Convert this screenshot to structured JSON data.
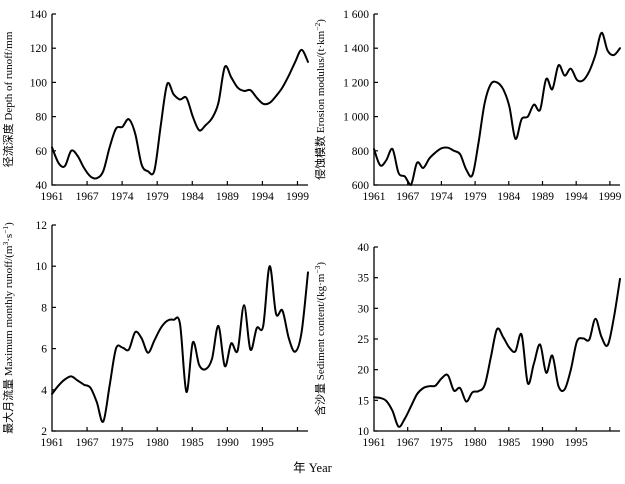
{
  "figure": {
    "xlabel": "年 Year",
    "background": "#ffffff",
    "line_color": "#000000"
  },
  "chart_data": [
    {
      "id": "depth-of-runoff",
      "type": "line",
      "title": "径流深度 Depth of runoff/mm",
      "ylabel": "径流深度 Depth of runoff/mm",
      "ylabel_parts": [
        [
          "径流深度 Depth of runoff/mm",
          0
        ]
      ],
      "ylim": [
        40,
        140
      ],
      "y_tick_values": [
        40,
        60,
        80,
        100,
        120,
        140
      ],
      "y_tick_labels": [
        "40",
        "60",
        "80",
        "100",
        "120",
        "140"
      ],
      "x_tick_labels": [
        "1961",
        "1967",
        "1974",
        "1979",
        "1984",
        "1989",
        "1994",
        "1999"
      ],
      "grid": false,
      "legend": false,
      "values": [
        62,
        53,
        51,
        60,
        57,
        50,
        45,
        44,
        48,
        62,
        73,
        74,
        78.5,
        70,
        52,
        48,
        48.5,
        75,
        99,
        93,
        90,
        91,
        80,
        72,
        75,
        79,
        88,
        109,
        103,
        97,
        95,
        95.5,
        91,
        87.5,
        88,
        92,
        97,
        104,
        112,
        119,
        112
      ]
    },
    {
      "id": "erosion-modulus",
      "type": "line",
      "title": "侵蚀模数 Erosion modulus/(t·km−2)",
      "ylabel": "侵蚀模数 Erosion modulus/(t·km−2)",
      "ylabel_parts": [
        [
          "侵蚀模数 Erosion modulus/(t·km",
          0
        ],
        [
          "−2",
          1
        ],
        [
          ")",
          0
        ]
      ],
      "ylim": [
        600,
        1600
      ],
      "y_tick_values": [
        600,
        800,
        1000,
        1200,
        1400,
        1600
      ],
      "y_tick_labels": [
        "600",
        "800",
        "1 000",
        "1 200",
        "1 400",
        "1 600"
      ],
      "x_tick_labels": [
        "1961",
        "1967",
        "1974",
        "1979",
        "1984",
        "1989",
        "1994",
        "1999"
      ],
      "grid": false,
      "legend": false,
      "values": [
        810,
        715,
        745,
        810,
        670,
        650,
        600,
        730,
        700,
        755,
        790,
        815,
        818,
        800,
        780,
        690,
        658,
        850,
        1080,
        1190,
        1200,
        1160,
        1060,
        870,
        985,
        1000,
        1070,
        1040,
        1220,
        1160,
        1300,
        1240,
        1280,
        1215,
        1212,
        1265,
        1360,
        1490,
        1385,
        1360,
        1400
      ]
    },
    {
      "id": "max-monthly-runoff",
      "type": "line",
      "title": "最大月流量 Maximum monthly runoff/(m3·s−1)",
      "ylabel": "最大月流量 Maximum monthly runoff/(m3·s−1)",
      "ylabel_parts": [
        [
          "最大月流量 Maximum monthly runoff/(m",
          0
        ],
        [
          "3",
          1
        ],
        [
          "·s",
          0
        ],
        [
          "−1",
          1
        ],
        [
          ")",
          0
        ]
      ],
      "ylim": [
        2,
        12
      ],
      "y_tick_values": [
        2,
        4,
        6,
        8,
        10,
        12
      ],
      "y_tick_labels": [
        "2",
        "4",
        "6",
        "8",
        "10",
        "12"
      ],
      "x_tick_labels": [
        "1961",
        "1967",
        "1975",
        "1980",
        "1985",
        "1990",
        "1995",
        ""
      ],
      "grid": false,
      "legend": false,
      "values": [
        3.8,
        4.2,
        4.5,
        4.65,
        4.45,
        4.25,
        4.1,
        3.4,
        2.45,
        4.2,
        6.0,
        6.05,
        5.95,
        6.8,
        6.5,
        5.8,
        6.4,
        7.0,
        7.35,
        7.4,
        7.2,
        3.9,
        6.3,
        5.2,
        5.0,
        5.5,
        7.1,
        5.15,
        6.25,
        5.9,
        8.1,
        5.95,
        7.0,
        7.1,
        10.0,
        7.7,
        7.85,
        6.5,
        5.85,
        6.8,
        9.7
      ]
    },
    {
      "id": "sediment-content",
      "type": "line",
      "title": "含沙量 Sediment content/(kg·m−3)",
      "ylabel": "含沙量 Sediment content/(kg·m−3)",
      "ylabel_parts": [
        [
          "含沙量 Sediment content/(kg·m",
          0
        ],
        [
          "−3",
          1
        ],
        [
          ")",
          0
        ]
      ],
      "ylim": [
        10,
        40
      ],
      "y_tick_values": [
        10,
        15,
        20,
        25,
        30,
        35,
        40
      ],
      "y_tick_labels": [
        "10",
        "15",
        "20",
        "25",
        "30",
        "35",
        "40"
      ],
      "x_tick_labels": [
        "1961",
        "1967",
        "1975",
        "1980",
        "1985",
        "1990",
        "1995",
        ""
      ],
      "grid": false,
      "legend": false,
      "values": [
        15.5,
        15.4,
        14.9,
        13.3,
        10.7,
        12.0,
        14.0,
        16.0,
        17.0,
        17.3,
        17.4,
        18.6,
        19.1,
        16.6,
        17.0,
        14.8,
        16.3,
        16.5,
        17.5,
        22.0,
        26.6,
        25.3,
        23.6,
        23.0,
        25.7,
        17.8,
        21.0,
        24.1,
        19.5,
        22.3,
        17.3,
        16.8,
        20.0,
        24.6,
        25.1,
        24.9,
        28.3,
        25.3,
        24.0,
        28.5,
        34.8
      ]
    }
  ]
}
